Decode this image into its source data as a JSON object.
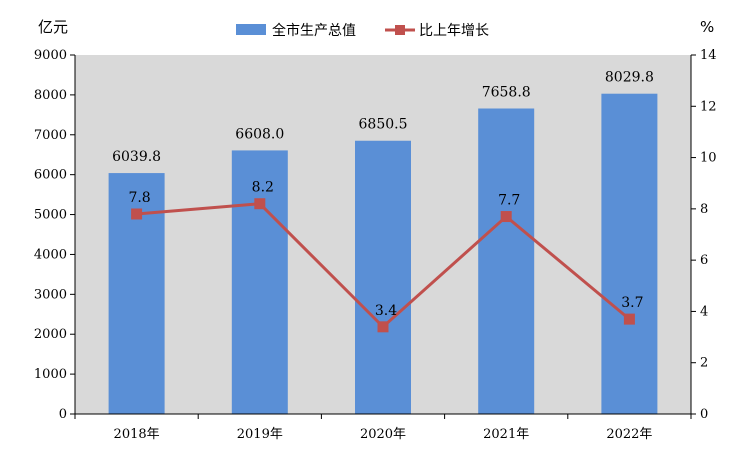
{
  "chart_data": {
    "type": "bar",
    "categories": [
      "2018年",
      "2019年",
      "2020年",
      "2021年",
      "2022年"
    ],
    "series": [
      {
        "name": "全市生产总值",
        "type": "bar",
        "axis": "left",
        "values": [
          6039.8,
          6608.0,
          6850.5,
          7658.8,
          8029.8
        ],
        "labels": [
          "6039.8",
          "6608.0",
          "6850.5",
          "7658.8",
          "8029.8"
        ],
        "color": "#5a8fd6"
      },
      {
        "name": "比上年增长",
        "type": "line",
        "axis": "right",
        "values": [
          7.8,
          8.2,
          3.4,
          7.7,
          3.7
        ],
        "labels": [
          "7.8",
          "8.2",
          "3.4",
          "7.7",
          "3.7"
        ],
        "color": "#c0504d"
      }
    ],
    "y_left": {
      "unit": "亿元",
      "ylim": [
        0,
        9000
      ],
      "ticks": [
        "0",
        "1000",
        "2000",
        "3000",
        "4000",
        "5000",
        "6000",
        "7000",
        "8000",
        "9000"
      ]
    },
    "y_right": {
      "unit": "%",
      "ylim": [
        0,
        14
      ],
      "ticks": [
        "0",
        "2",
        "4",
        "6",
        "8",
        "10",
        "12",
        "14"
      ]
    },
    "legend_position": "top-center",
    "plot_background": "#d9d9d9",
    "grid": false
  }
}
